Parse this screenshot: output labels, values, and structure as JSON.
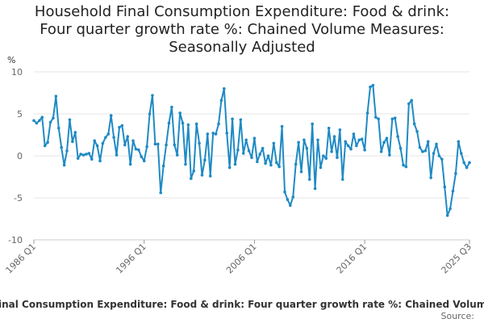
{
  "chart_data": {
    "type": "line",
    "title": "Household Final Consumption Expenditure: Food & drink: Four quarter growth rate %: Chained Volume Measures: Seasonally Adjusted",
    "title_lines": [
      "Household Final Consumption Expenditure: Food & drink:",
      "Four quarter growth rate %: Chained Volume Measures:",
      "Seasonally Adjusted"
    ],
    "ylabel": "%",
    "xlabel": "",
    "ylim": [
      -10,
      10
    ],
    "yticks": [
      10,
      5,
      0,
      -5,
      -10
    ],
    "xtick_labels": [
      "1986 Q1",
      "1996 Q1",
      "2006 Q1",
      "2016 Q1",
      "2025 Q3"
    ],
    "xtick_indices": [
      0,
      40,
      80,
      120,
      158
    ],
    "grid": true,
    "legend_label": "Household Final Consumption Expenditure: Food & drink: Four quarter growth rate %: Chained Volume Measures: Seasonally Adjusted",
    "source_label": "Source:",
    "series": [
      {
        "name": "Household Final Consumption Expenditure: Food & drink: Four quarter growth rate %: Chained Volume Measures: Seasonally Adjusted",
        "color": "#1f8ac4",
        "start": "1986 Q1",
        "values": [
          4.2,
          3.9,
          4.2,
          4.6,
          1.2,
          1.6,
          4.0,
          4.5,
          7.1,
          3.3,
          1.0,
          -1.1,
          0.6,
          4.3,
          1.7,
          2.8,
          -0.3,
          0.2,
          0.1,
          0.2,
          0.3,
          -0.4,
          1.8,
          1.2,
          -0.6,
          1.5,
          2.2,
          2.6,
          4.8,
          2.2,
          0.1,
          3.4,
          3.6,
          1.3,
          2.3,
          -1.0,
          1.8,
          0.8,
          0.7,
          -0.1,
          -0.6,
          1.1,
          5.0,
          7.2,
          1.4,
          1.4,
          -4.4,
          -1.2,
          1.3,
          3.9,
          5.8,
          1.3,
          0.1,
          5.1,
          3.9,
          -1.0,
          3.7,
          -2.7,
          -1.8,
          3.8,
          1.5,
          -2.3,
          -0.5,
          2.6,
          -2.4,
          2.7,
          2.6,
          3.8,
          6.6,
          8.0,
          2.7,
          -1.4,
          4.4,
          -1.0,
          0.7,
          4.3,
          0.3,
          1.9,
          0.6,
          -0.2,
          2.1,
          -0.7,
          0.2,
          0.9,
          -0.9,
          0.0,
          -1.1,
          1.5,
          -0.8,
          -1.3,
          3.5,
          -4.3,
          -5.2,
          -5.9,
          -4.9,
          -1.0,
          1.6,
          -1.9,
          1.9,
          0.9,
          -2.8,
          3.8,
          -3.9,
          1.9,
          -1.4,
          0.0,
          -0.3,
          3.3,
          0.5,
          2.3,
          -0.2,
          3.1,
          -2.8,
          1.7,
          1.2,
          0.8,
          2.6,
          1.2,
          1.9,
          2.0,
          0.7,
          5.1,
          8.2,
          8.4,
          4.6,
          4.4,
          0.5,
          1.6,
          2.1,
          0.1,
          4.4,
          4.5,
          2.3,
          0.9,
          -1.1,
          -1.3,
          6.2,
          6.6,
          3.8,
          2.9,
          1.0,
          0.5,
          0.6,
          1.7,
          -2.6,
          0.3,
          1.4,
          0.0,
          -0.4,
          -3.7,
          -7.1,
          -6.3,
          -4.2,
          -2.1,
          1.7,
          0.3,
          -0.8,
          -1.4,
          -0.8
        ]
      }
    ]
  }
}
